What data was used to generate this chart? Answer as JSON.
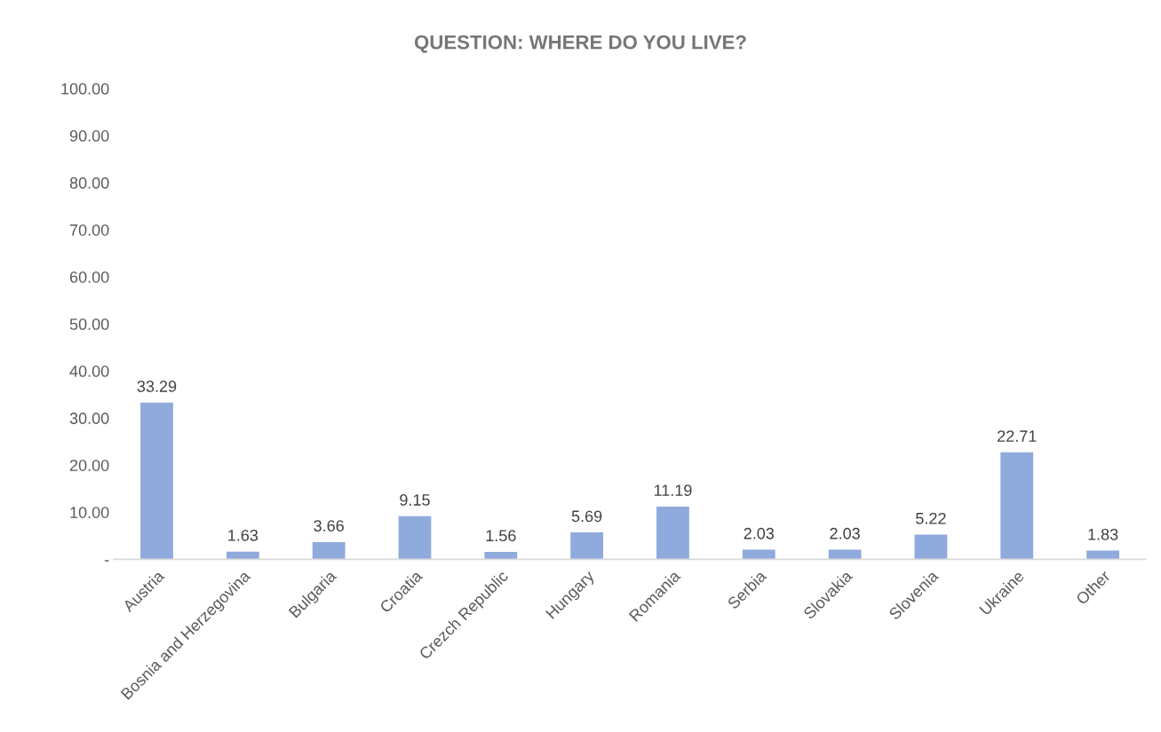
{
  "chart_data": {
    "type": "bar",
    "title": "QUESTION: WHERE DO YOU LIVE?",
    "categories": [
      "Austria",
      "Bosnia and Herzegovina",
      "Bulgaria",
      "Croatia",
      "Crezch Republic",
      "Hungary",
      "Romania",
      "Serbia",
      "Slovakia",
      "Slovenia",
      "Ukraine",
      "Other"
    ],
    "values": [
      33.29,
      1.63,
      3.66,
      9.15,
      1.56,
      5.69,
      11.19,
      2.03,
      2.03,
      5.22,
      22.71,
      1.83
    ],
    "color": "#8faadc",
    "ylim": [
      0,
      100
    ],
    "yticks": [
      {
        "value": 0,
        "label": "-"
      },
      {
        "value": 10,
        "label": "10.00"
      },
      {
        "value": 20,
        "label": "20.00"
      },
      {
        "value": 30,
        "label": "30.00"
      },
      {
        "value": 40,
        "label": "40.00"
      },
      {
        "value": 50,
        "label": "50.00"
      },
      {
        "value": 60,
        "label": "60.00"
      },
      {
        "value": 70,
        "label": "70.00"
      },
      {
        "value": 80,
        "label": "80.00"
      },
      {
        "value": 90,
        "label": "90.00"
      },
      {
        "value": 100,
        "label": "100.00"
      }
    ],
    "data_labels": true,
    "grid": false,
    "legend": false
  }
}
